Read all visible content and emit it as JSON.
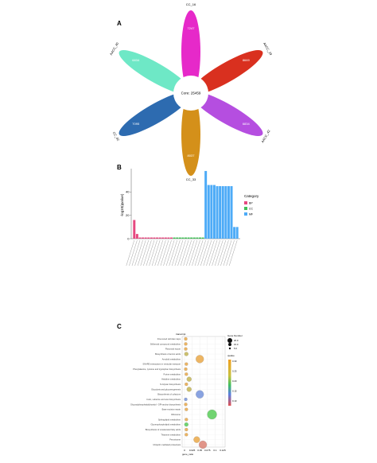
{
  "figure": {
    "panel_labels": [
      "A",
      "B",
      "C"
    ]
  },
  "panelA": {
    "core_label": "Core: 25459",
    "petals": [
      {
        "name": "CC_16",
        "value": "7247",
        "color": "#e629c9"
      },
      {
        "name": "AACC_29",
        "value": "8669",
        "color": "#d9301f"
      },
      {
        "name": "AACC_42",
        "value": "6834",
        "color": "#b54ee0"
      },
      {
        "name": "CC_33",
        "value": "8037",
        "color": "#d4901a"
      },
      {
        "name": "CC_42",
        "value": "7095",
        "color": "#2d6bb0"
      },
      {
        "name": "AACC_40",
        "value": "6834",
        "color": "#6ee8c6"
      }
    ]
  },
  "chart_data": [
    {
      "type": "bar",
      "ylabel": "-log10(qvalue)",
      "ylim": [
        0,
        60
      ],
      "yticks": [
        0,
        20,
        40
      ],
      "legend_title": "Category",
      "legend_position": "right",
      "legend": [
        {
          "label": "BP",
          "color": "#e64980"
        },
        {
          "label": "CC",
          "color": "#40c057"
        },
        {
          "label": "MF",
          "color": "#4dabf7"
        }
      ],
      "bars": [
        {
          "cat": "BP",
          "value": 16
        },
        {
          "cat": "BP",
          "value": 4
        },
        {
          "cat": "BP",
          "value": 1
        },
        {
          "cat": "BP",
          "value": 1
        },
        {
          "cat": "BP",
          "value": 1
        },
        {
          "cat": "BP",
          "value": 1
        },
        {
          "cat": "BP",
          "value": 1
        },
        {
          "cat": "BP",
          "value": 1
        },
        {
          "cat": "BP",
          "value": 1
        },
        {
          "cat": "BP",
          "value": 1
        },
        {
          "cat": "BP",
          "value": 1
        },
        {
          "cat": "BP",
          "value": 1
        },
        {
          "cat": "BP",
          "value": 1
        },
        {
          "cat": "BP",
          "value": 1
        },
        {
          "cat": "CC",
          "value": 1
        },
        {
          "cat": "CC",
          "value": 1
        },
        {
          "cat": "CC",
          "value": 1
        },
        {
          "cat": "CC",
          "value": 1
        },
        {
          "cat": "CC",
          "value": 1
        },
        {
          "cat": "CC",
          "value": 1
        },
        {
          "cat": "CC",
          "value": 1
        },
        {
          "cat": "CC",
          "value": 1
        },
        {
          "cat": "CC",
          "value": 1
        },
        {
          "cat": "CC",
          "value": 1
        },
        {
          "cat": "CC",
          "value": 1
        },
        {
          "cat": "MF",
          "value": 58
        },
        {
          "cat": "MF",
          "value": 46
        },
        {
          "cat": "MF",
          "value": 46
        },
        {
          "cat": "MF",
          "value": 46
        },
        {
          "cat": "MF",
          "value": 45
        },
        {
          "cat": "MF",
          "value": 45
        },
        {
          "cat": "MF",
          "value": 45
        },
        {
          "cat": "MF",
          "value": 45
        },
        {
          "cat": "MF",
          "value": 45
        },
        {
          "cat": "MF",
          "value": 45
        },
        {
          "cat": "MF",
          "value": 10
        },
        {
          "cat": "MF",
          "value": 10
        }
      ]
    },
    {
      "type": "scatter",
      "title": "transcript",
      "xlabel": "gene_ratio",
      "xticks": [
        "0",
        "0.025",
        "0.05",
        "0.075",
        "0.1",
        "0.125"
      ],
      "xlim": [
        0,
        0.125
      ],
      "size_legend_title": "Gene Number",
      "size_legend": [
        "20.0",
        "15.0",
        "5.0"
      ],
      "color_legend_title": "qvalue",
      "color_legend_ticks": [
        "0.10",
        "0.15",
        "0.20",
        "0.25",
        "0.30"
      ],
      "rows": [
        "Fine-tuned cell-fate maps",
        "Stilbenoid compound metabolism",
        "Flavonoid export",
        "Biosynthesis of amino acids",
        "Amyloid metabolism",
        "SNARE interactions in vesicular transport",
        "Phenylalanine, tyrosine and tryptophan biosynthesis",
        "Purine metabolism",
        "Histidine metabolism",
        "N-Glycan biosynthesis",
        "Glycolysis and gluconeogenesis",
        "Biosynthesis of cofactors",
        "Cutin, suberine and wax biosynthesis",
        "Glycosylphosphatidylinositol - GPI-anchor biosynthesis",
        "Base excision repair",
        "Ribosome",
        "Sphingolipid metabolism",
        "Glycerophospholipid metabolism",
        "Biosynthesis of unsaturated fatty acids",
        "Thiamine metabolism",
        "Peroxisome",
        "Ubiquitin mediated proteolysis"
      ],
      "points": [
        {
          "x": 0.004,
          "size": 2,
          "color": "#e8a33c"
        },
        {
          "x": 0.004,
          "size": 2,
          "color": "#e8a33c"
        },
        {
          "x": 0.004,
          "size": 2,
          "color": "#e8a33c"
        },
        {
          "x": 0.006,
          "size": 2.5,
          "color": "#bfb04a"
        },
        {
          "x": 0.05,
          "size": 5,
          "color": "#e8a33c"
        },
        {
          "x": 0.006,
          "size": 2,
          "color": "#e8a33c"
        },
        {
          "x": 0.004,
          "size": 2,
          "color": "#e8a33c"
        },
        {
          "x": 0.006,
          "size": 2,
          "color": "#e8a33c"
        },
        {
          "x": 0.015,
          "size": 3,
          "color": "#bfb04a"
        },
        {
          "x": 0.006,
          "size": 2,
          "color": "#e8a33c"
        },
        {
          "x": 0.015,
          "size": 3,
          "color": "#bfb04a"
        },
        {
          "x": 0.05,
          "size": 5,
          "color": "#6b8cd9"
        },
        {
          "x": 0.004,
          "size": 2,
          "color": "#6b8cd9"
        },
        {
          "x": 0.004,
          "size": 2,
          "color": "#e8a33c"
        },
        {
          "x": 0.006,
          "size": 2,
          "color": "#e8a33c"
        },
        {
          "x": 0.09,
          "size": 6,
          "color": "#4ec94e"
        },
        {
          "x": 0.006,
          "size": 2,
          "color": "#e8a33c"
        },
        {
          "x": 0.006,
          "size": 2.5,
          "color": "#4ec94e"
        },
        {
          "x": 0.006,
          "size": 2,
          "color": "#e8a33c"
        },
        {
          "x": 0.006,
          "size": 2,
          "color": "#e8a33c"
        },
        {
          "x": 0.04,
          "size": 4,
          "color": "#e8a33c"
        },
        {
          "x": 0.06,
          "size": 5,
          "color": "#d97a6b"
        }
      ]
    }
  ]
}
